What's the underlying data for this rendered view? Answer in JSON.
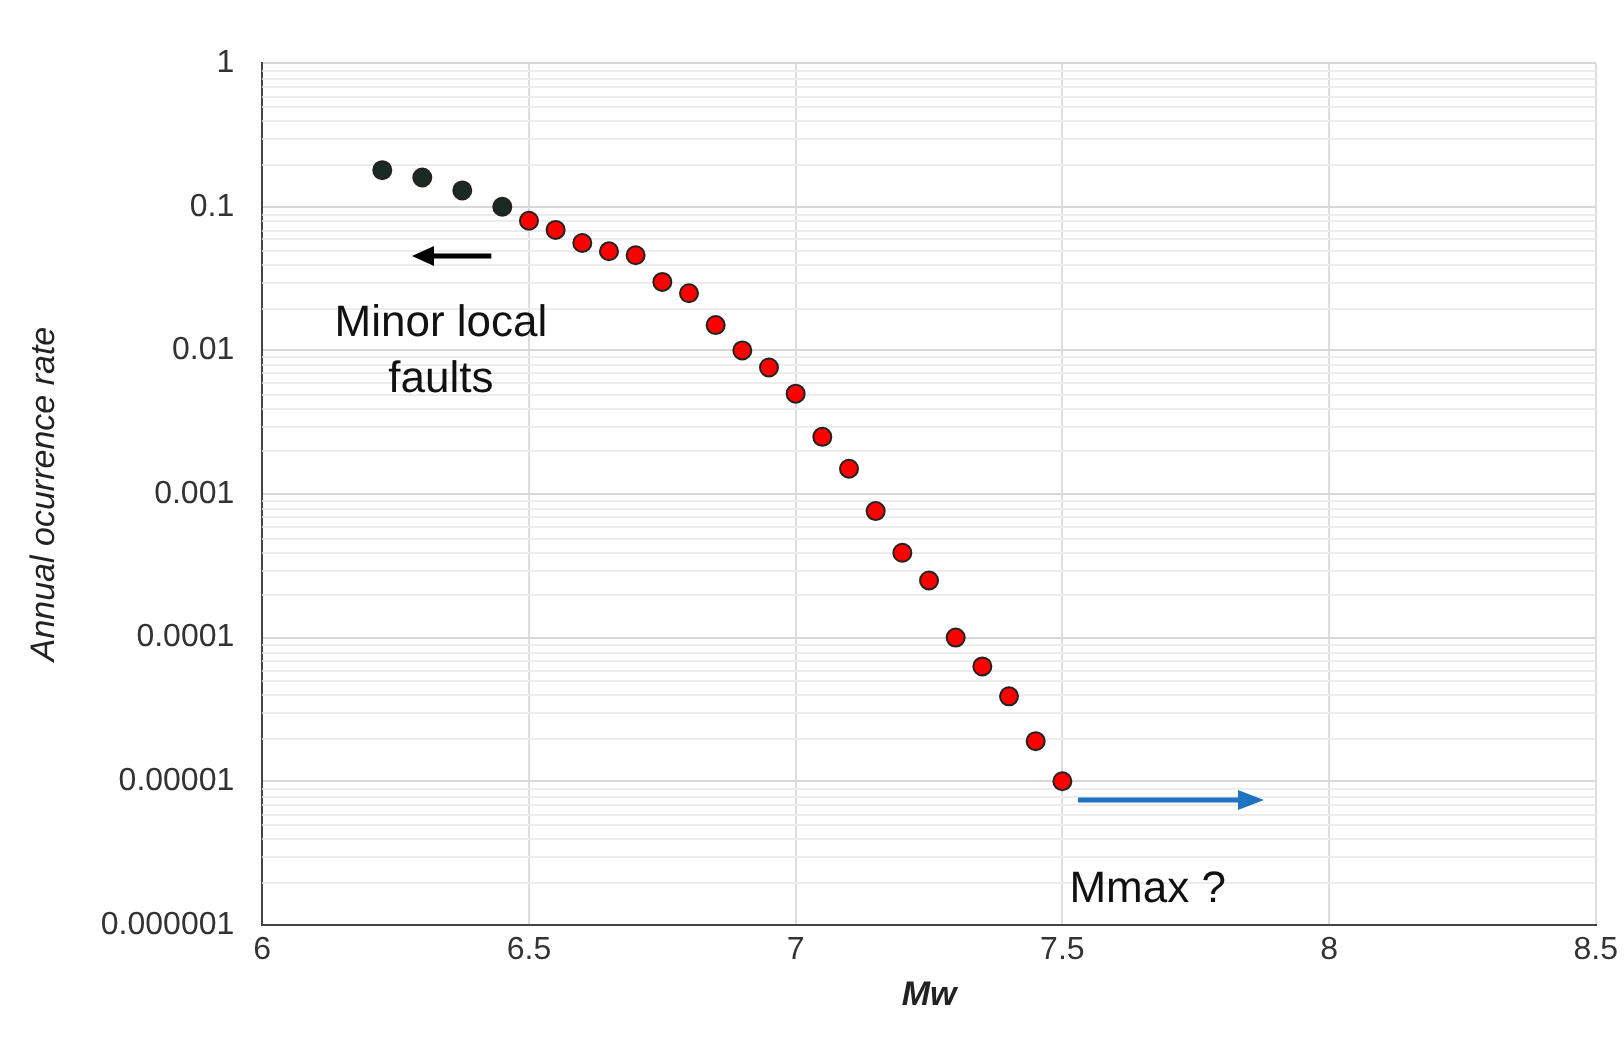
{
  "chart_data": {
    "type": "scatter",
    "xlabel": "Mw",
    "ylabel": "Annual ocurrence rate",
    "xlim": [
      6,
      8.5
    ],
    "xticks": [
      6,
      6.5,
      7,
      7.5,
      8,
      8.5
    ],
    "ylim": [
      1e-06,
      1
    ],
    "yticks": [
      {
        "value": 1e-06,
        "label": "0.000001"
      },
      {
        "value": 1e-05,
        "label": "0.00001"
      },
      0.0001,
      0.001,
      0.01,
      0.1,
      1
    ],
    "log": "y",
    "grid": true,
    "marker": "circle",
    "series": [
      {
        "color": "#1c2a24",
        "x": [
          6.225,
          6.3,
          6.375,
          6.45
        ],
        "values": [
          0.18,
          0.16,
          0.13,
          0.1
        ]
      },
      {
        "color": "#ff0000",
        "x": [
          6.5,
          6.55,
          6.6,
          6.65,
          6.7,
          6.75,
          6.8,
          6.85,
          6.9,
          6.95,
          7,
          7.05,
          7.1,
          7.15,
          7.2,
          7.25,
          7.3,
          7.35,
          7.4,
          7.45,
          7.5
        ],
        "values": [
          0.08,
          0.069,
          0.056,
          0.049,
          0.046,
          0.03,
          0.025,
          0.015,
          0.01,
          0.0076,
          0.005,
          0.0025,
          0.0015,
          0.00076,
          0.00039,
          0.00025,
          0.0001,
          6.3e-05,
          3.9e-05,
          1.9e-05,
          1e-05
        ]
      }
    ],
    "annotations": [
      "Minor local faults",
      "Mmax ?"
    ]
  }
}
